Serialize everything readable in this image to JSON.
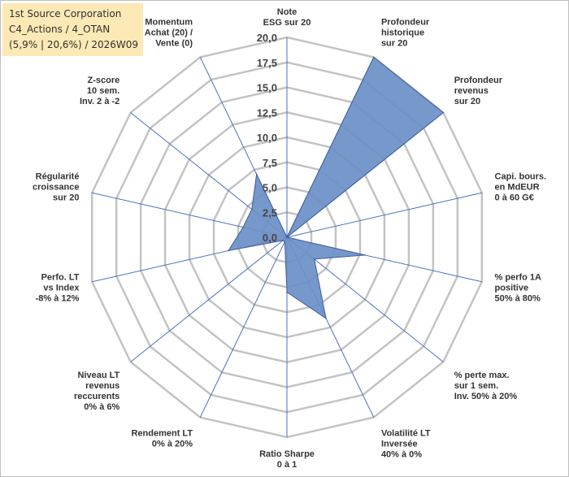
{
  "info_box": {
    "line1": "1st Source Corporation",
    "line2": "C4_Actions / 4_OTAN",
    "line3": "(5,9% | 20,6%) / 2026W09"
  },
  "chart_data": {
    "type": "radar",
    "rmin": 0,
    "rmax": 20,
    "tick_values": [
      0,
      2.5,
      5,
      7.5,
      10,
      12.5,
      15,
      17.5,
      20
    ],
    "tick_labels": [
      "0,0",
      "2,5",
      "5,0",
      "7,5",
      "10,0",
      "12,5",
      "15,0",
      "17,5",
      "20,0"
    ],
    "grid": true,
    "colors": {
      "fill": "#6b8fc7",
      "stroke": "#3d5f9e",
      "grid": "#c3c3c3",
      "axis": "#4a72c4"
    },
    "axes": [
      {
        "lines": [
          "Note",
          "ESG sur 20"
        ],
        "value": 0
      },
      {
        "lines": [
          "Profondeur",
          "historique",
          "sur 20"
        ],
        "value": 20
      },
      {
        "lines": [
          "Profondeur",
          "revenus",
          "sur 20"
        ],
        "value": 20
      },
      {
        "lines": [
          "Capi. bours.",
          "en MdEUR",
          "0 à 60 G€"
        ],
        "value": 0
      },
      {
        "lines": [
          "% perfo 1A",
          "positive",
          "50% à 80%"
        ],
        "value": 8
      },
      {
        "lines": [
          "% perte max.",
          "sur 1 sem.",
          "Inv. 50% à 20%"
        ],
        "value": 3.5
      },
      {
        "lines": [
          "Volatilité LT",
          "Inversée",
          "40% à 0%"
        ],
        "value": 9
      },
      {
        "lines": [
          "Ratio Sharpe",
          "0 à 1"
        ],
        "value": 5.5
      },
      {
        "lines": [
          "Rendement LT",
          "0% à 20%"
        ],
        "value": 0.5
      },
      {
        "lines": [
          "Niveau LT",
          "revenus",
          "reccurents",
          "0% à 6%"
        ],
        "value": 0.5
      },
      {
        "lines": [
          "Perfo. LT",
          "vs Index",
          "-8% à 12%"
        ],
        "value": 6
      },
      {
        "lines": [
          "Régularité",
          "croissance",
          "sur 20"
        ],
        "value": 4.5
      },
      {
        "lines": [
          "Z-score",
          "10 sem.",
          "Inv. 2 à -2"
        ],
        "value": 4.5
      },
      {
        "lines": [
          "Momentum",
          "Achat (20) /",
          "Vente (0)"
        ],
        "value": 7
      }
    ]
  }
}
